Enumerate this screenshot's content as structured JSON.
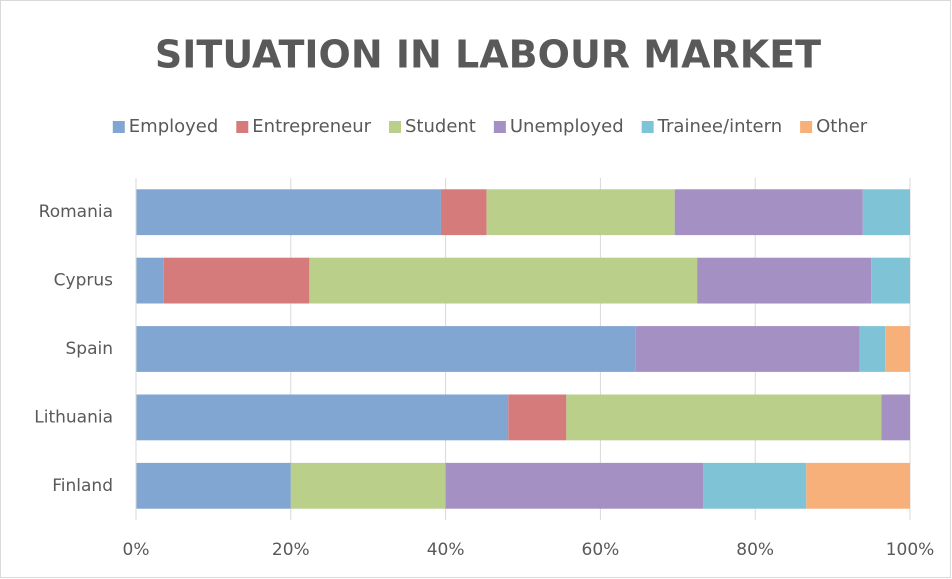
{
  "chart_data": {
    "type": "stacked_barh",
    "title": "SITUATION IN LABOUR MARKET",
    "categories": [
      "Romania",
      "Cyprus",
      "Spain",
      "Lithuania",
      "Finland"
    ],
    "series": [
      {
        "name": "Employed",
        "color": "#82a6d2",
        "values": [
          39.4,
          3.6,
          64.5,
          48.1,
          20
        ]
      },
      {
        "name": "Entrepreneur",
        "color": "#d67b7b",
        "values": [
          5.9,
          18.8,
          0,
          7.5,
          0
        ]
      },
      {
        "name": "Student",
        "color": "#b9cf8a",
        "values": [
          24.3,
          50.1,
          0,
          40.7,
          20
        ]
      },
      {
        "name": "Unemployed",
        "color": "#a490c2",
        "values": [
          24.3,
          22.5,
          29.0,
          3.7,
          33.3
        ]
      },
      {
        "name": "Trainee/intern",
        "color": "#7fc4d6",
        "values": [
          6.1,
          5.0,
          3.3,
          0,
          13.3
        ]
      },
      {
        "name": "Other",
        "color": "#f8b07a",
        "values": [
          0,
          0,
          3.2,
          0,
          13.4
        ]
      }
    ],
    "xlim": [
      0,
      100
    ],
    "xticks": [
      {
        "value": 0,
        "label": "0%"
      },
      {
        "value": 20,
        "label": "20%"
      },
      {
        "value": 40,
        "label": "40%"
      },
      {
        "value": 60,
        "label": "60%"
      },
      {
        "value": 80,
        "label": "80%"
      },
      {
        "value": 100,
        "label": "100%"
      }
    ],
    "grid": true,
    "legend": "top"
  }
}
